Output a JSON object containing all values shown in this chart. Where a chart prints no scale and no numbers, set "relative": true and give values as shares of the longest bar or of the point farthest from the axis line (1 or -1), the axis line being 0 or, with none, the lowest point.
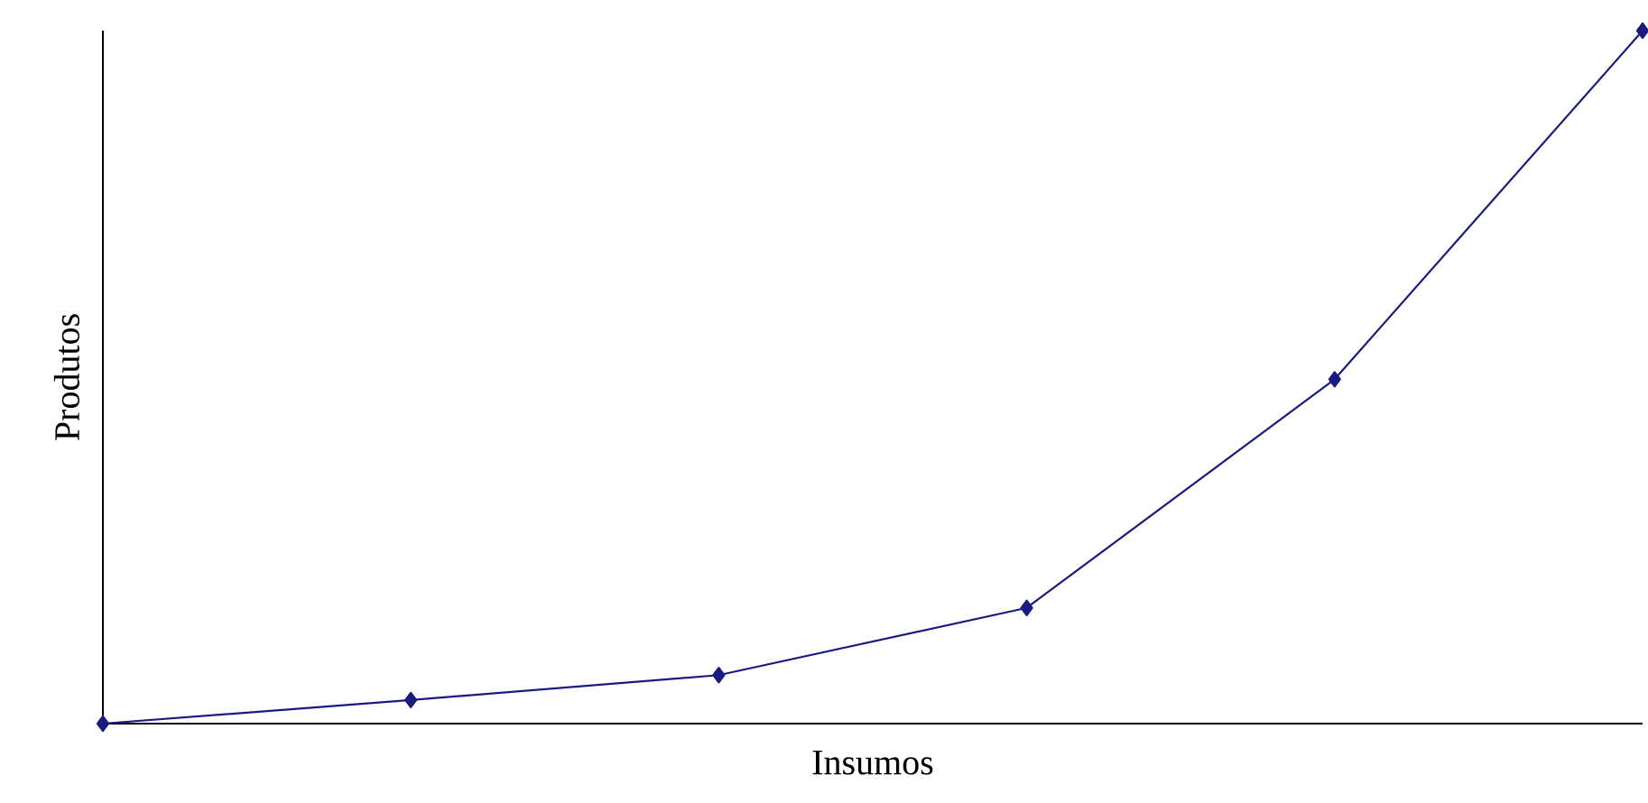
{
  "chart_data": {
    "type": "line",
    "relative": true,
    "xlabel": "Insumos",
    "ylabel": "Produtos",
    "categories": [
      null,
      null,
      null,
      null,
      null,
      null
    ],
    "series": [
      {
        "color": "#1a1a80",
        "values": [
          0,
          0.034,
          0.07,
          0.167,
          0.497,
          1
        ]
      }
    ],
    "marker": "diamond",
    "line_style": "solid"
  }
}
